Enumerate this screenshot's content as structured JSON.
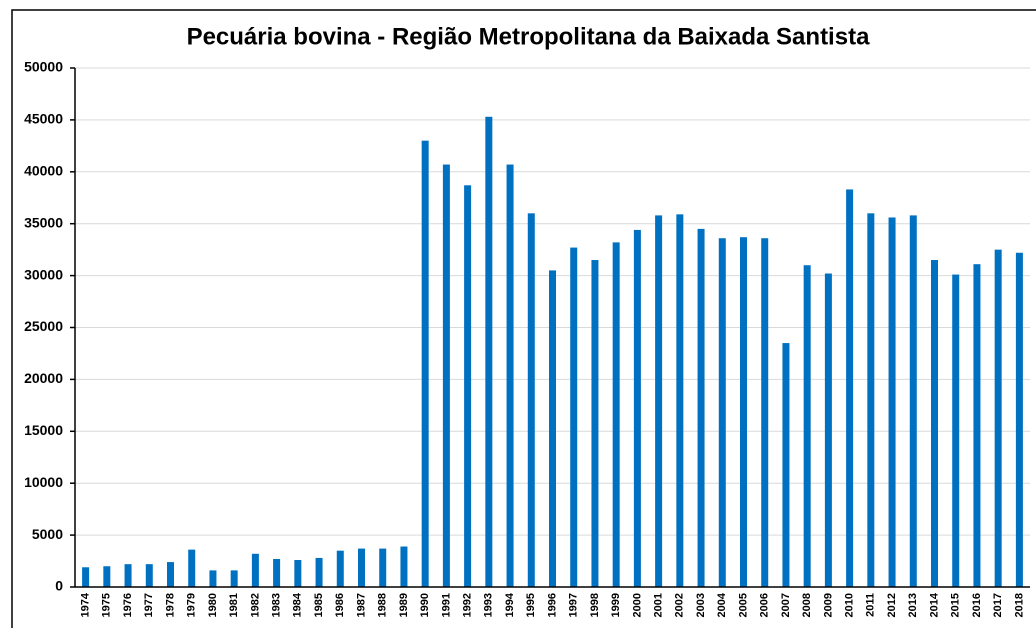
{
  "chart_data": {
    "type": "bar",
    "title": "Pecuária bovina - Região Metropolitana da Baixada Santista",
    "categories": [
      "1974",
      "1975",
      "1976",
      "1977",
      "1978",
      "1979",
      "1980",
      "1981",
      "1982",
      "1983",
      "1984",
      "1985",
      "1986",
      "1987",
      "1988",
      "1989",
      "1990",
      "1991",
      "1992",
      "1993",
      "1994",
      "1995",
      "1996",
      "1997",
      "1998",
      "1999",
      "2000",
      "2001",
      "2002",
      "2003",
      "2004",
      "2005",
      "2006",
      "2007",
      "2008",
      "2009",
      "2010",
      "2011",
      "2012",
      "2013",
      "2014",
      "2015",
      "2016",
      "2017",
      "2018"
    ],
    "values": [
      1900,
      2000,
      2200,
      2200,
      2400,
      3600,
      1600,
      1600,
      3200,
      2700,
      2600,
      2800,
      3500,
      3700,
      3700,
      3900,
      43000,
      40700,
      38700,
      45300,
      40700,
      36000,
      30500,
      32700,
      31500,
      33200,
      34400,
      35800,
      35900,
      34500,
      33600,
      33700,
      33600,
      23500,
      31000,
      30200,
      38300,
      36000,
      35600,
      35800,
      31500,
      30100,
      31100,
      32500,
      32200
    ],
    "color": "#0070c0",
    "ylim": [
      0,
      50000
    ],
    "yticks": [
      0,
      5000,
      10000,
      15000,
      20000,
      25000,
      30000,
      35000,
      40000,
      45000,
      50000
    ],
    "grid": true
  }
}
